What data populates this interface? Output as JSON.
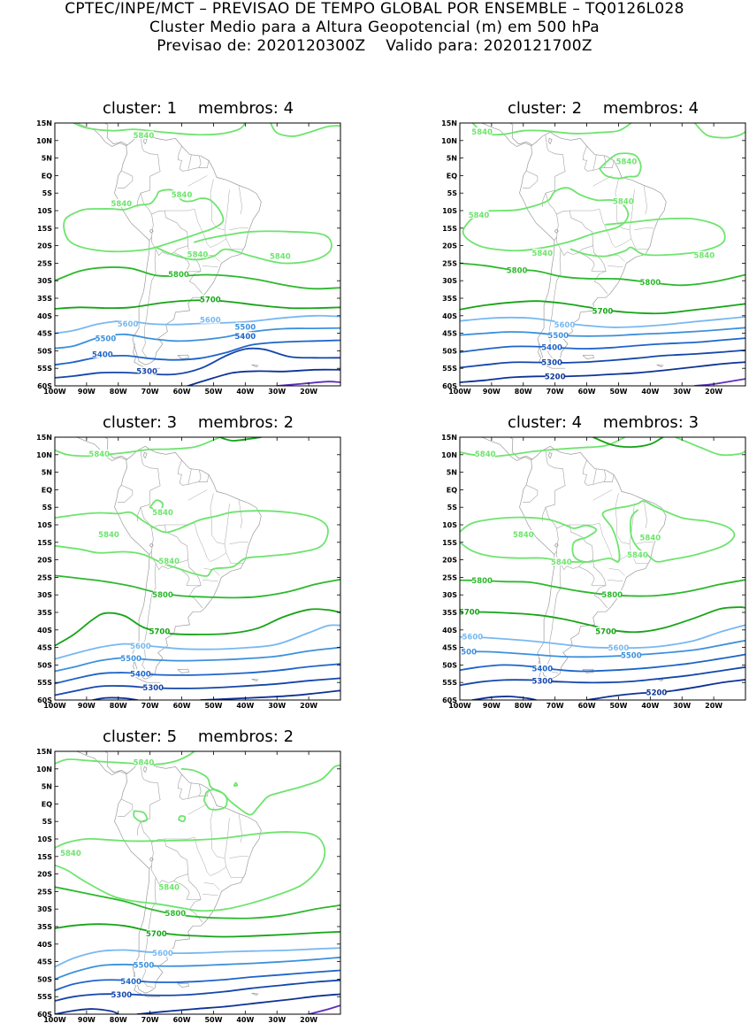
{
  "header": {
    "line1": "CPTEC/INPE/MCT – PREVISAO DE TEMPO GLOBAL POR ENSEMBLE – TQ0126L028",
    "line2": "Cluster Medio para a Altura Geopotencial (m) em 500 hPa",
    "line3": "Previsao de: 2020120300Z    Valido para: 2020121700Z"
  },
  "axes": {
    "lat_labels": [
      "15N",
      "10N",
      "5N",
      "EQ",
      "5S",
      "10S",
      "15S",
      "20S",
      "25S",
      "30S",
      "35S",
      "40S",
      "45S",
      "50S",
      "55S",
      "60S"
    ],
    "lon_labels": [
      "100W",
      "90W",
      "80W",
      "70W",
      "60W",
      "50W",
      "40W",
      "30W",
      "20W"
    ]
  },
  "colors": {
    "5840": "#6ee46e",
    "5800": "#2db82d",
    "5700": "#17a417",
    "5600": "#78b8f0",
    "5500": "#3c90dc",
    "5400": "#1e64c8",
    "5300": "#1446aa",
    "5200": "#0e3296",
    "5100": "#5a2dbe",
    "coast": "#9a9a9a",
    "frame": "#000000"
  },
  "panels": [
    {
      "cluster_label": "cluster:",
      "cluster": "1",
      "membros_label": "membros:",
      "membros": "4",
      "contour_labels": [
        {
          "value": "5840"
        },
        {
          "value": "5840"
        },
        {
          "value": "5840"
        },
        {
          "value": "5840"
        },
        {
          "value": "5840"
        },
        {
          "value": "5800"
        },
        {
          "value": "5700"
        },
        {
          "value": "5600"
        },
        {
          "value": "5600"
        },
        {
          "value": "5500"
        },
        {
          "value": "5500"
        },
        {
          "value": "5400"
        },
        {
          "value": "5400"
        },
        {
          "value": "5300"
        }
      ]
    },
    {
      "cluster_label": "cluster:",
      "cluster": "2",
      "membros_label": "membros:",
      "membros": "4",
      "contour_labels": [
        {
          "value": "5840"
        },
        {
          "value": "5840"
        },
        {
          "value": "5840"
        },
        {
          "value": "5840"
        },
        {
          "value": "5840"
        },
        {
          "value": "5840"
        },
        {
          "value": "5800"
        },
        {
          "value": "5800"
        },
        {
          "value": "5700"
        },
        {
          "value": "5600"
        },
        {
          "value": "5500"
        },
        {
          "value": "5400"
        },
        {
          "value": "5300"
        },
        {
          "value": "5200"
        }
      ]
    },
    {
      "cluster_label": "cluster:",
      "cluster": "3",
      "membros_label": "membros:",
      "membros": "2",
      "contour_labels": [
        {
          "value": "5840"
        },
        {
          "value": "5840"
        },
        {
          "value": "5840"
        },
        {
          "value": "5840"
        },
        {
          "value": "5800"
        },
        {
          "value": "5700"
        },
        {
          "value": "5600"
        },
        {
          "value": "5500"
        },
        {
          "value": "5400"
        },
        {
          "value": "5300"
        }
      ]
    },
    {
      "cluster_label": "cluster:",
      "cluster": "4",
      "membros_label": "membros:",
      "membros": "3",
      "contour_labels": [
        {
          "value": "5840"
        },
        {
          "value": "5840"
        },
        {
          "value": "5840"
        },
        {
          "value": "5840"
        },
        {
          "value": "5840"
        },
        {
          "value": "5800"
        },
        {
          "value": "5800"
        },
        {
          "value": "5700"
        },
        {
          "value": "5700"
        },
        {
          "value": "5600"
        },
        {
          "value": "5600"
        },
        {
          "value": "5500"
        },
        {
          "value": "5500"
        },
        {
          "value": "5400"
        },
        {
          "value": "5300"
        },
        {
          "value": "5200"
        }
      ]
    },
    {
      "cluster_label": "cluster:",
      "cluster": "5",
      "membros_label": "membros:",
      "membros": "2",
      "contour_labels": [
        {
          "value": "5840"
        },
        {
          "value": "5840"
        },
        {
          "value": "5840"
        },
        {
          "value": "5800"
        },
        {
          "value": "5700"
        },
        {
          "value": "5600"
        },
        {
          "value": "5500"
        },
        {
          "value": "5400"
        },
        {
          "value": "5300"
        }
      ]
    }
  ]
}
